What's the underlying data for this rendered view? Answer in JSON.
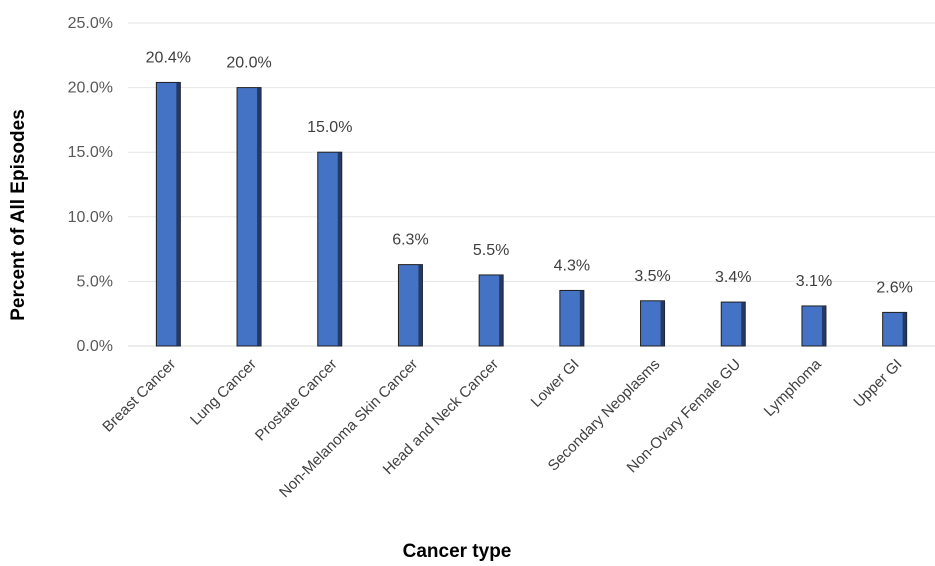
{
  "chart_data": {
    "type": "bar",
    "title": "",
    "xlabel": "Cancer type",
    "ylabel": "Percent of All Episodes",
    "categories": [
      "Breast Cancer",
      "Lung Cancer",
      "Prostate Cancer",
      "Non-Melanoma Skin Cancer",
      "Head and Neck Cancer",
      "Lower GI",
      "Secondary Neoplasms",
      "Non-Ovary Female GU",
      "Lymphoma",
      "Upper GI"
    ],
    "values": [
      20.4,
      20.0,
      15.0,
      6.3,
      5.5,
      4.3,
      3.5,
      3.4,
      3.1,
      2.6
    ],
    "data_labels": [
      "20.4%",
      "20.0%",
      "15.0%",
      "6.3%",
      "5.5%",
      "4.3%",
      "3.5%",
      "3.4%",
      "3.1%",
      "2.6%"
    ],
    "ylim": [
      0,
      25
    ],
    "yticks": [
      0,
      5,
      10,
      15,
      20,
      25
    ],
    "ytick_labels": [
      "0.0%",
      "5.0%",
      "10.0%",
      "15.0%",
      "20.0%",
      "25.0%"
    ],
    "grid": true,
    "legend": "none",
    "colors": {
      "bar": "#4472C4",
      "bar_edge": "#1F1F1F",
      "gridline": "#E6E6E6"
    }
  }
}
